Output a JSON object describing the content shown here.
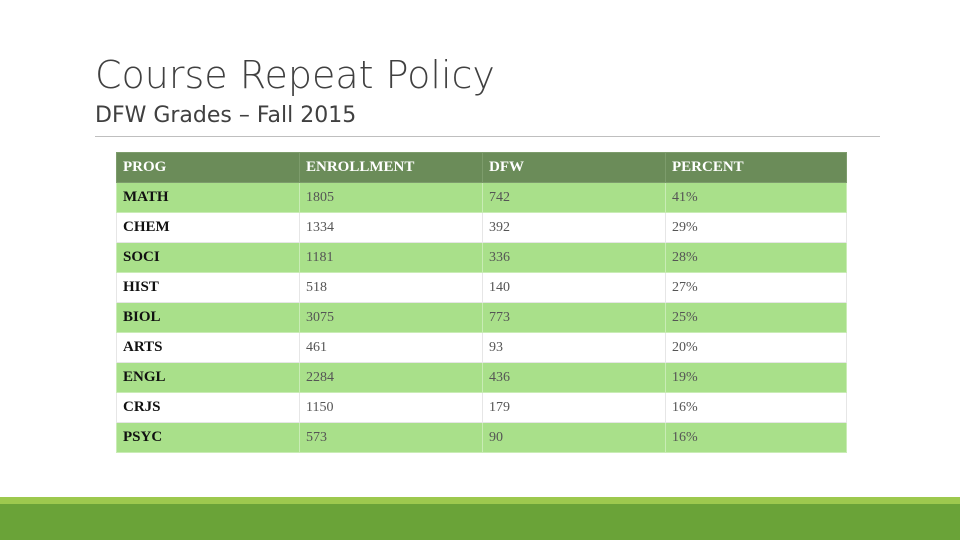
{
  "slide": {
    "title": "Course Repeat Policy",
    "subtitle": "DFW Grades – Fall 2015"
  },
  "table": {
    "headers": [
      "PROG",
      "ENROLLMENT",
      "DFW",
      "PERCENT"
    ],
    "rows": [
      [
        "MATH",
        "1805",
        "742",
        "41%"
      ],
      [
        "CHEM",
        "1334",
        "392",
        "29%"
      ],
      [
        "SOCI",
        "1181",
        "336",
        "28%"
      ],
      [
        "HIST",
        "518",
        "140",
        "27%"
      ],
      [
        "BIOL",
        "3075",
        "773",
        "25%"
      ],
      [
        "ARTS",
        "461",
        "93",
        "20%"
      ],
      [
        "ENGL",
        "2284",
        "436",
        "19%"
      ],
      [
        "CRJS",
        "1150",
        "179",
        "16%"
      ],
      [
        "PSYC",
        "573",
        "90",
        "16%"
      ]
    ]
  },
  "colors": {
    "header_bg": "#6b8c59",
    "row_green": "#a9e08a",
    "footer_light": "#9dc94e",
    "footer_dark": "#6aa338"
  }
}
